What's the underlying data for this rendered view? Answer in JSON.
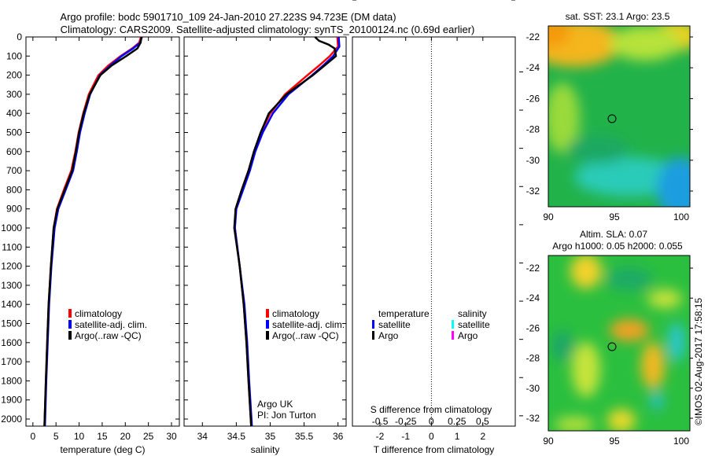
{
  "title_line1": "Argo profile: bodc 5901710_109 24-Jan-2010 27.223S 94.723E (DM data)",
  "title_line2": "Climatology: CARS2009. Satellite-adjusted climatology: synTS_20100124.nc (0.69d earlier)",
  "chart_data": [
    {
      "type": "line",
      "panel": "temperature",
      "xlabel": "temperature (deg C)",
      "ylabel": "depth",
      "xlim": [
        -1.5,
        31.7
      ],
      "ylim": [
        2037,
        0
      ],
      "xticks": [
        0,
        5,
        10,
        15,
        20,
        25,
        30
      ],
      "yticks": [
        0,
        100,
        200,
        300,
        400,
        500,
        600,
        700,
        800,
        900,
        1000,
        1100,
        1200,
        1300,
        1400,
        1500,
        1600,
        1700,
        1800,
        1900,
        2000
      ],
      "legend": [
        "climatology",
        "satellite-adj. clim.",
        "Argo(..raw -QC)"
      ],
      "series": [
        {
          "name": "climatology",
          "color": "#ff0000",
          "depth": [
            0,
            30,
            60,
            100,
            150,
            200,
            300,
            400,
            500,
            600,
            700,
            800,
            900,
            1000,
            1200,
            1400,
            1600,
            1800,
            2037
          ],
          "values": [
            23.4,
            23.0,
            21.5,
            19.0,
            16.3,
            14.2,
            12.1,
            10.9,
            9.9,
            9.2,
            8.3,
            6.7,
            5.2,
            4.5,
            3.9,
            3.4,
            3.1,
            2.8,
            2.5
          ]
        },
        {
          "name": "satellite-adj. clim.",
          "color": "#0000ff",
          "depth": [
            0,
            30,
            60,
            100,
            150,
            200,
            300,
            400,
            500,
            600,
            700,
            800,
            900,
            1000,
            1200,
            1400,
            1600,
            1800,
            2037
          ],
          "values": [
            23.6,
            23.2,
            21.7,
            19.2,
            16.7,
            14.5,
            12.4,
            11.2,
            10.2,
            9.5,
            8.7,
            7.1,
            5.5,
            4.7,
            4.0,
            3.5,
            3.2,
            2.9,
            2.6
          ]
        },
        {
          "name": "Argo(..raw -QC)",
          "color": "#000000",
          "depth": [
            0,
            30,
            60,
            100,
            150,
            200,
            300,
            400,
            500,
            600,
            700,
            800,
            900,
            1000,
            1200,
            1400,
            1600,
            1800,
            2037
          ],
          "values": [
            23.5,
            23.3,
            22.6,
            20.2,
            17.0,
            14.6,
            12.3,
            11.0,
            10.0,
            9.3,
            8.5,
            6.9,
            5.3,
            4.5,
            3.9,
            3.4,
            3.1,
            2.8,
            2.5
          ]
        }
      ]
    },
    {
      "type": "line",
      "panel": "salinity",
      "xlabel": "salinity",
      "xlim": [
        33.73,
        36.12
      ],
      "ylim": [
        2037,
        0
      ],
      "xticks": [
        34,
        34.5,
        35,
        35.5,
        36
      ],
      "legend": [
        "climatology",
        "satellite-adj. clim.",
        "Argo(..raw -QC)"
      ],
      "annotation": [
        "Argo UK",
        "PI: Jon Turton"
      ],
      "series": [
        {
          "name": "climatology",
          "color": "#ff0000",
          "depth": [
            0,
            50,
            100,
            150,
            200,
            300,
            400,
            500,
            600,
            700,
            800,
            900,
            1000,
            1200,
            1400,
            1600,
            1800,
            2037
          ],
          "values": [
            35.99,
            36.0,
            35.88,
            35.72,
            35.55,
            35.22,
            35.0,
            34.86,
            34.76,
            34.68,
            34.58,
            34.49,
            34.48,
            34.55,
            34.61,
            34.65,
            34.68,
            34.72
          ]
        },
        {
          "name": "satellite-adj. clim.",
          "color": "#0000ff",
          "depth": [
            0,
            50,
            100,
            150,
            200,
            300,
            400,
            500,
            600,
            700,
            800,
            900,
            1000,
            1200,
            1400,
            1600,
            1800,
            2037
          ],
          "values": [
            36.01,
            36.02,
            35.93,
            35.78,
            35.62,
            35.27,
            35.04,
            34.89,
            34.78,
            34.7,
            34.6,
            34.5,
            34.48,
            34.55,
            34.62,
            34.66,
            34.69,
            34.73
          ]
        },
        {
          "name": "Argo(..raw -QC)",
          "color": "#000000",
          "depth": [
            0,
            20,
            40,
            60,
            100,
            150,
            200,
            300,
            400,
            500,
            600,
            700,
            800,
            900,
            1000,
            1200,
            1400,
            1600,
            1800,
            2037
          ],
          "values": [
            35.66,
            35.72,
            35.86,
            35.95,
            35.97,
            35.8,
            35.63,
            35.24,
            34.98,
            34.86,
            34.76,
            34.68,
            34.58,
            34.49,
            34.47,
            34.55,
            34.61,
            34.65,
            34.68,
            34.72
          ]
        }
      ]
    },
    {
      "type": "line",
      "panel": "difference",
      "xlabel": "T difference from climatology",
      "x2label": "S difference from climatology",
      "xlim": [
        -3.07,
        3.26
      ],
      "xticks": [
        -2,
        -1,
        0,
        1,
        2
      ],
      "x2lim": [
        -0.77,
        0.82
      ],
      "x2ticks": [
        "-0.5",
        "-0.25",
        "0",
        "0.25",
        "0.5"
      ],
      "legend_titles": [
        "temperature",
        "salinity"
      ],
      "legend": [
        "satellite",
        "Argo",
        "satellite",
        "Argo"
      ],
      "series": [
        {
          "name": "temperature satellite",
          "axis": "T",
          "color": "#0000ff",
          "depth": [
            0,
            30,
            50,
            100,
            160,
            200,
            255,
            370,
            575,
            800,
            920,
            1060,
            1310,
            1600,
            2037
          ],
          "values": [
            0.0,
            0.3,
            0.0,
            0.2,
            0.5,
            0.76,
            0.6,
            0.4,
            0.46,
            0.76,
            0.46,
            0.2,
            0.05,
            0.08,
            0.08
          ]
        },
        {
          "name": "temperature Argo",
          "axis": "T",
          "color": "#000000",
          "depth": [
            0,
            15,
            30,
            46,
            70,
            90,
            130,
            170,
            220,
            270,
            370,
            500,
            650,
            825,
            960,
            1045,
            1200,
            1330
          ],
          "values": [
            0.3,
            0.4,
            1.6,
            1.9,
            1.2,
            1.0,
            0.7,
            0.46,
            0.2,
            0.0,
            0.15,
            0.2,
            0.41,
            0.77,
            0.3,
            0.0,
            0.0,
            0.0
          ]
        },
        {
          "name": "salinity satellite",
          "axis": "S",
          "color": "#00ffff",
          "depth": [
            0,
            40,
            100,
            150,
            250,
            400,
            600,
            800,
            1000,
            1300,
            2037
          ],
          "values": [
            -0.04,
            -0.03,
            0.02,
            0.08,
            0.11,
            0.05,
            0.04,
            0.03,
            0.0,
            -0.01,
            -0.01
          ]
        },
        {
          "name": "salinity Argo",
          "axis": "S",
          "color": "#ff00ff",
          "depth": [
            0,
            20,
            37,
            55,
            76,
            118,
            186,
            260,
            361,
            480,
            700,
            921,
            1045,
            1200,
            1400
          ],
          "values": [
            -0.38,
            -0.25,
            -0.15,
            -0.08,
            0.02,
            0.1,
            0.02,
            -0.05,
            -0.04,
            0.04,
            0.02,
            -0.02,
            -0.04,
            -0.02,
            -0.02
          ]
        }
      ]
    }
  ],
  "maps": [
    {
      "title": "sat. SST: 23.1 Argo: 23.5",
      "yticks": [
        "-22",
        "-24",
        "-26",
        "-28",
        "-30",
        "-32"
      ],
      "xticks": [
        "90",
        "95",
        "100"
      ],
      "marker": {
        "lon": 94.723,
        "lat": -27.223
      }
    },
    {
      "title_line1": "Altim. SLA: 0.07",
      "title_line2": "Argo h1000: 0.05 h2000: 0.055",
      "yticks": [
        "-22",
        "-24",
        "-26",
        "-28",
        "-30",
        "-32"
      ],
      "xticks": [
        "90",
        "95",
        "100"
      ],
      "marker": {
        "lon": 94.723,
        "lat": -27.223
      }
    }
  ],
  "copyright": "©IMOS 02-Aug-2017 17:58:15"
}
